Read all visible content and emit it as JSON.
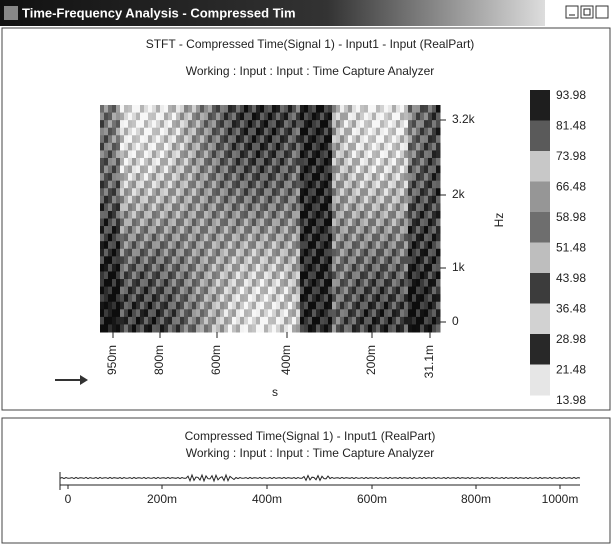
{
  "window": {
    "title": "Time-Frequency Analysis - Compressed Tim"
  },
  "spectrogram_panel": {
    "title": "STFT - Compressed Time(Signal 1) - Input1 - Input (RealPart)",
    "subtitle": "Working : Input : Input : Time Capture Analyzer",
    "y_ticks": [
      "3.2k",
      "2k",
      "1k",
      "0"
    ],
    "y_label": "Hz",
    "x_ticks": [
      "950m",
      "800m",
      "600m",
      "400m",
      "200m",
      "31.1m"
    ],
    "x_label": "s",
    "colorbar_labels": [
      "93.98",
      "81.48",
      "73.98",
      "66.48",
      "58.98",
      "51.48",
      "43.98",
      "36.48",
      "28.98",
      "21.48",
      "13.98"
    ]
  },
  "time_panel": {
    "title": "Compressed Time(Signal 1) - Input1 (RealPart)",
    "subtitle": "Working : Input : Input : Time Capture Analyzer",
    "x_ticks": [
      "0",
      "200m",
      "400m",
      "600m",
      "800m",
      "1000m"
    ]
  }
}
